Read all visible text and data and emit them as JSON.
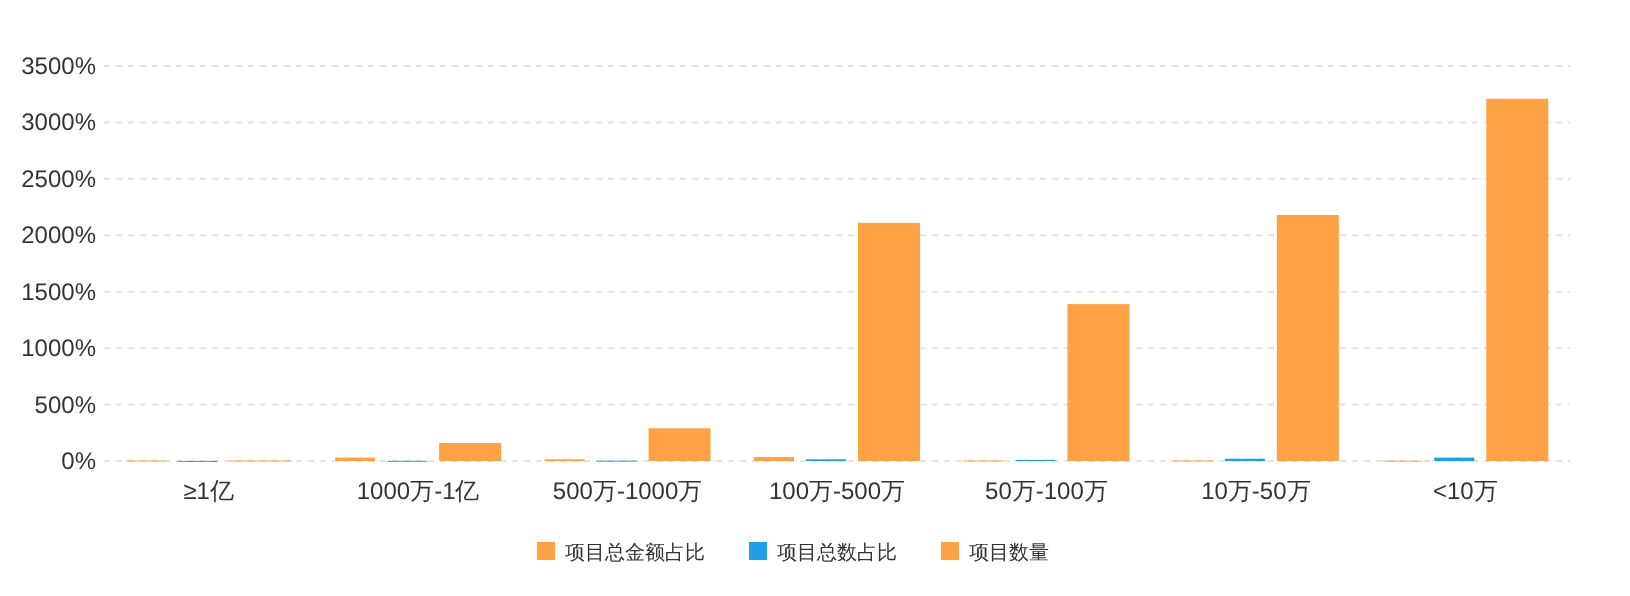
{
  "chart_data": {
    "type": "bar",
    "categories": [
      "≥1亿",
      "1000万-1亿",
      "500万-1000万",
      "100万-500万",
      "50万-100万",
      "10万-50万",
      "<10万"
    ],
    "series": [
      {
        "name": "项目总金额占比",
        "color": "#ffa145",
        "values": [
          5,
          30,
          15,
          35,
          5,
          5,
          3
        ]
      },
      {
        "name": "项目总数占比",
        "color": "#1e9fe8",
        "values": [
          1,
          2,
          3,
          15,
          10,
          20,
          30
        ]
      },
      {
        "name": "项目数量",
        "color": "#ffa145",
        "values": [
          5,
          160,
          290,
          2110,
          1390,
          2180,
          3210
        ]
      }
    ],
    "ylim": [
      0,
      3500
    ],
    "yticks": [
      {
        "value": 0,
        "label": "0%"
      },
      {
        "value": 500,
        "label": "500%"
      },
      {
        "value": 1000,
        "label": "1000%"
      },
      {
        "value": 1500,
        "label": "1500%"
      },
      {
        "value": 2000,
        "label": "2000%"
      },
      {
        "value": 2500,
        "label": "2500%"
      },
      {
        "value": 3000,
        "label": "3000%"
      },
      {
        "value": 3500,
        "label": "3500%"
      }
    ],
    "grid": "y",
    "legend": "bottom"
  }
}
